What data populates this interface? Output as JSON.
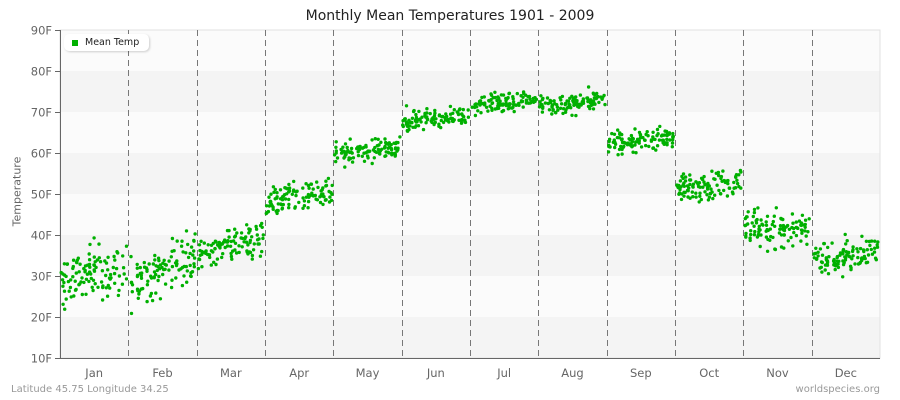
{
  "title": "Monthly Mean Temperatures 1901 - 2009",
  "footer": {
    "location": "Latitude 45.75 Longitude 34.25",
    "source": "worldspecies.org"
  },
  "legend": {
    "label": "Mean Temp",
    "color": "#00b000"
  },
  "chart_data": {
    "type": "scatter",
    "title": "Monthly Mean Temperatures 1901 - 2009",
    "xlabel": "",
    "ylabel": "Temperature",
    "ylim": [
      10,
      90
    ],
    "yticks": [
      "10F",
      "20F",
      "30F",
      "40F",
      "50F",
      "60F",
      "70F",
      "80F",
      "90F"
    ],
    "categories": [
      "Jan",
      "Feb",
      "Mar",
      "Apr",
      "May",
      "Jun",
      "Jul",
      "Aug",
      "Sep",
      "Oct",
      "Nov",
      "Dec"
    ],
    "grid": "horizontal alternating bands, dashed vertical month dividers",
    "legend_position": "top-left inside",
    "years": [
      1901,
      2009
    ],
    "points_per_month": 109,
    "series": [
      {
        "name": "Mean Temp",
        "color": "#00b000",
        "monthly_summary": [
          {
            "month": "Jan",
            "mean": 30,
            "start": 29,
            "end": 32,
            "spread": 5.5,
            "min": 15,
            "max": 41
          },
          {
            "month": "Feb",
            "mean": 30,
            "start": 28,
            "end": 34,
            "spread": 5.5,
            "min": 14,
            "max": 41
          },
          {
            "month": "Mar",
            "mean": 37,
            "start": 35,
            "end": 40,
            "spread": 3.5,
            "min": 28,
            "max": 45
          },
          {
            "month": "Apr",
            "mean": 49,
            "start": 48,
            "end": 51,
            "spread": 3.0,
            "min": 42,
            "max": 57
          },
          {
            "month": "May",
            "mean": 60,
            "start": 60,
            "end": 61,
            "spread": 2.2,
            "min": 56,
            "max": 66
          },
          {
            "month": "Jun",
            "mean": 68,
            "start": 68,
            "end": 69,
            "spread": 2.0,
            "min": 65,
            "max": 74
          },
          {
            "month": "Jul",
            "mean": 73,
            "start": 72,
            "end": 73,
            "spread": 2.0,
            "min": 69,
            "max": 80
          },
          {
            "month": "Aug",
            "mean": 72,
            "start": 71,
            "end": 73,
            "spread": 2.0,
            "min": 67,
            "max": 79
          },
          {
            "month": "Sep",
            "mean": 63,
            "start": 62,
            "end": 64,
            "spread": 2.4,
            "min": 57,
            "max": 70
          },
          {
            "month": "Oct",
            "mean": 52,
            "start": 51,
            "end": 53,
            "spread": 3.2,
            "min": 44,
            "max": 60
          },
          {
            "month": "Nov",
            "mean": 41,
            "start": 42,
            "end": 41,
            "spread": 3.8,
            "min": 30,
            "max": 49
          },
          {
            "month": "Dec",
            "mean": 35,
            "start": 34,
            "end": 36,
            "spread": 3.8,
            "min": 24,
            "max": 45
          }
        ]
      }
    ]
  }
}
